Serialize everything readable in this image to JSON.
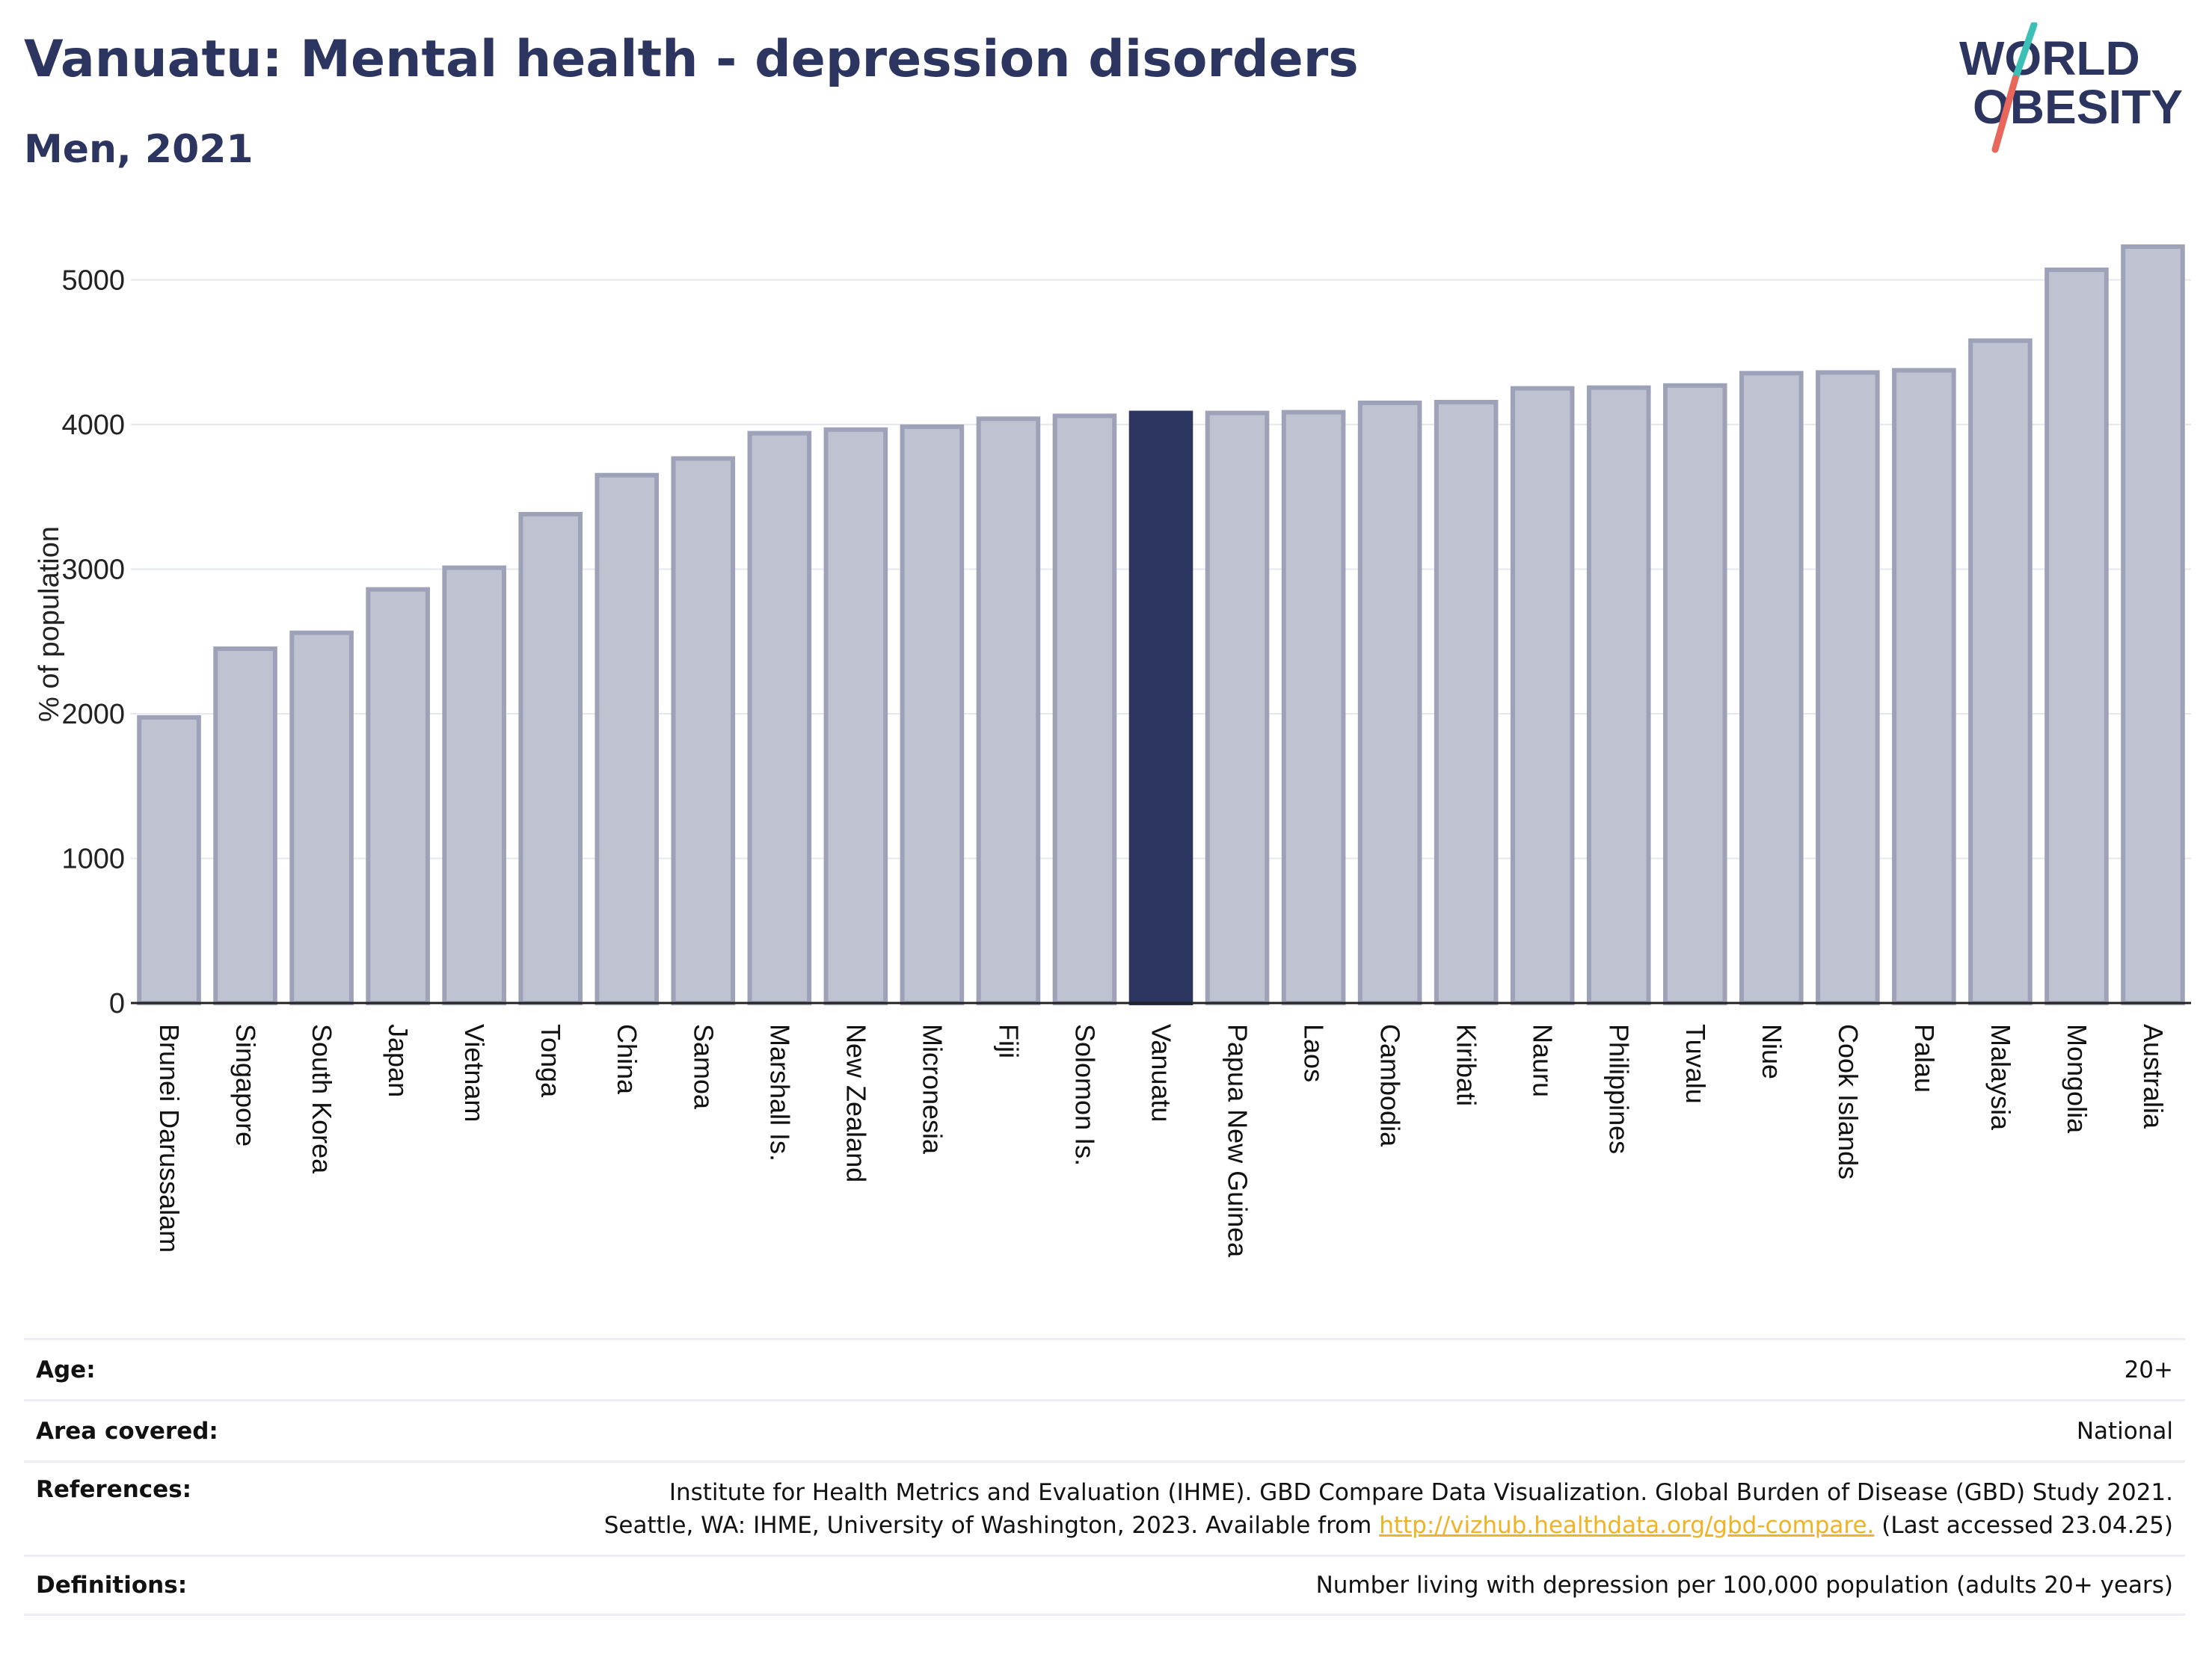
{
  "header": {
    "title": "Vanuatu: Mental health - depression disorders",
    "subtitle": "Men, 2021"
  },
  "logo": {
    "line1": "WORLD",
    "line2": "OBESITY",
    "colors": {
      "text": "#2b3560",
      "slash_top": "#3cbfb4",
      "slash_bottom": "#e8665a"
    }
  },
  "colors": {
    "bar": "#bfc2d0",
    "bar_border": "#9da2b8",
    "highlight": "#2b3560",
    "grid": "#e6e8ef",
    "axis": "#222222"
  },
  "chart_data": {
    "type": "bar",
    "title": "Vanuatu: Mental health - depression disorders",
    "subtitle": "Men, 2021",
    "ylabel": "% of population",
    "xlabel": "",
    "ylim": [
      0,
      5500
    ],
    "yticks": [
      0,
      1000,
      2000,
      3000,
      4000,
      5000
    ],
    "grid": true,
    "highlight": "Vanuatu",
    "categories": [
      "Brunei Darussalam",
      "Singapore",
      "South Korea",
      "Japan",
      "Vietnam",
      "Tonga",
      "China",
      "Samoa",
      "Marshall Is.",
      "New Zealand",
      "Micronesia",
      "Fiji",
      "Solomon Is.",
      "Vanuatu",
      "Papua New Guinea",
      "Laos",
      "Cambodia",
      "Kiribati",
      "Nauru",
      "Philippines",
      "Tuvalu",
      "Niue",
      "Cook Islands",
      "Palau",
      "Malaysia",
      "Mongolia",
      "Australia"
    ],
    "values": [
      1975,
      2450,
      2560,
      2860,
      3010,
      3380,
      3650,
      3765,
      3940,
      3965,
      3985,
      4040,
      4060,
      4080,
      4080,
      4085,
      4150,
      4155,
      4250,
      4255,
      4270,
      4355,
      4360,
      4375,
      4580,
      5070,
      5230
    ]
  },
  "meta": {
    "age_label": "Age:",
    "age_value": "20+",
    "area_label": "Area covered:",
    "area_value": "National",
    "refs_label": "References:",
    "refs_line1": "Institute for Health Metrics and Evaluation (IHME). GBD Compare Data Visualization. Global Burden of Disease (GBD) Study 2021.",
    "refs_line2_pre": "Seattle, WA: IHME, University of Washington, 2023. Available from ",
    "refs_link": "http://vizhub.healthdata.org/gbd-compare.",
    "refs_line2_post": " (Last accessed 23.04.25)",
    "defs_label": "Definitions:",
    "defs_value": "Number living with depression per 100,000 population (adults 20+ years)"
  }
}
